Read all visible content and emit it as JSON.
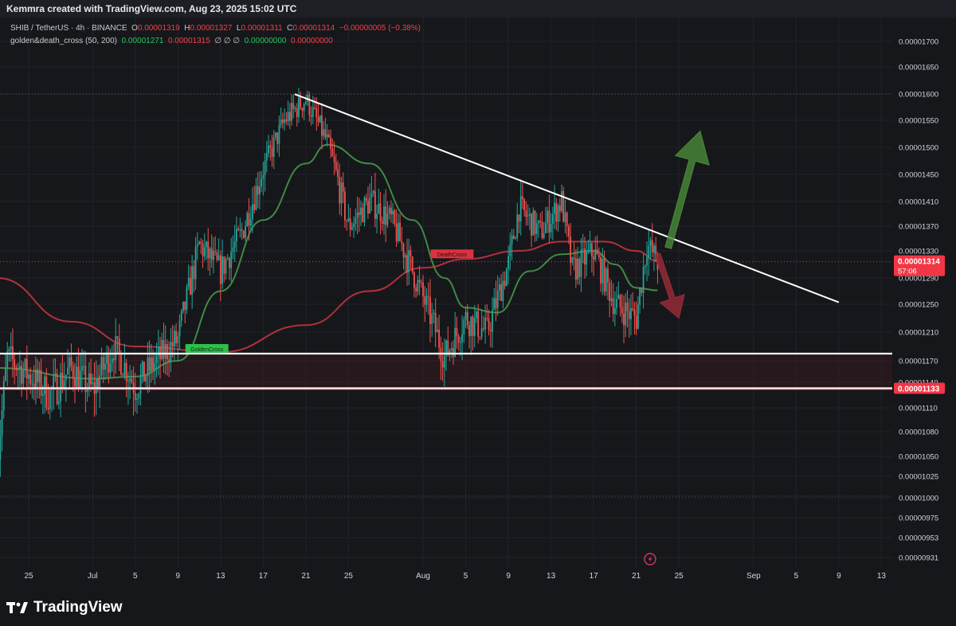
{
  "header": {
    "title": "Kemmra created with TradingView.com, Aug 23, 2025 15:02 UTC"
  },
  "legend": {
    "symbol": "SHIB / TetherUS · 4h · BINANCE",
    "ohlc": [
      {
        "label": "O",
        "value": "0.00001319"
      },
      {
        "label": "H",
        "value": "0.00001327"
      },
      {
        "label": "L",
        "value": "0.00001311"
      },
      {
        "label": "C",
        "value": "0.00001314"
      }
    ],
    "change": "−0.00000005 (−0.38%)",
    "indicator": "golden&death_cross (50, 200)",
    "indicator_values": [
      "0.00001271",
      "0.00001315",
      "∅ ∅ ∅",
      "0.00000000",
      "0.00000000"
    ]
  },
  "price_tag": {
    "value": "0.00001314",
    "countdown": "57:06",
    "color": "#f23645"
  },
  "support_tag": {
    "value": "0.00001133",
    "color": "#f23645"
  },
  "annotations": {
    "golden_cross": "GoldenCross",
    "death_cross": "DeathCross"
  },
  "brand": {
    "name": "TradingView"
  },
  "colors": {
    "background": "#16171b",
    "up": "#26a69a",
    "down": "#ef5350",
    "ma50": "#3f8a44",
    "ma200": "#b3303c"
  },
  "chart_data": {
    "type": "candlestick",
    "timeframe": "4h",
    "x_ticks": [
      "25",
      "Jul",
      "5",
      "9",
      "13",
      "17",
      "21",
      "25",
      "Aug",
      "5",
      "9",
      "13",
      "17",
      "21",
      "25",
      "Sep",
      "5",
      "9",
      "13"
    ],
    "y_ticks": [
      "0.00001700",
      "0.00001650",
      "0.00001600",
      "0.00001550",
      "0.00001500",
      "0.00001450",
      "0.00001410",
      "0.00001370",
      "0.00001330",
      "0.00001290",
      "0.00001250",
      "0.00001210",
      "0.00001170",
      "0.00001140",
      "0.00001110",
      "0.00001080",
      "0.00001050",
      "0.00001025",
      "0.00001000",
      "0.00000975",
      "0.00000953",
      "0.00000931"
    ],
    "ylim": [
      9.3e-06,
      1.72e-05
    ],
    "price_path": [
      [
        "Jun 22",
        1.035e-05
      ],
      [
        "Jun 23",
        1.175e-05
      ],
      [
        "Jun 25",
        1.15e-05
      ],
      [
        "Jun 27",
        1.125e-05
      ],
      [
        "Jun 29",
        1.16e-05
      ],
      [
        "Jul 1",
        1.13e-05
      ],
      [
        "Jul 3",
        1.19e-05
      ],
      [
        "Jul 5",
        1.135e-05
      ],
      [
        "Jul 7",
        1.17e-05
      ],
      [
        "Jul 9",
        1.2e-05
      ],
      [
        "Jul 11",
        1.34e-05
      ],
      [
        "Jul 13",
        1.3e-05
      ],
      [
        "Jul 15",
        1.36e-05
      ],
      [
        "Jul 17",
        1.46e-05
      ],
      [
        "Jul 19",
        1.55e-05
      ],
      [
        "Jul 21",
        1.59e-05
      ],
      [
        "Jul 23",
        1.51e-05
      ],
      [
        "Jul 25",
        1.37e-05
      ],
      [
        "Jul 27",
        1.41e-05
      ],
      [
        "Jul 29",
        1.38e-05
      ],
      [
        "Jul 31",
        1.3e-05
      ],
      [
        "Aug 2",
        1.22e-05
      ],
      [
        "Aug 3",
        1.175e-05
      ],
      [
        "Aug 5",
        1.23e-05
      ],
      [
        "Aug 7",
        1.21e-05
      ],
      [
        "Aug 9",
        1.31e-05
      ],
      [
        "Aug 10",
        1.4e-05
      ],
      [
        "Aug 12",
        1.36e-05
      ],
      [
        "Aug 14",
        1.41e-05
      ],
      [
        "Aug 15",
        1.3e-05
      ],
      [
        "Aug 17",
        1.33e-05
      ],
      [
        "Aug 19",
        1.25e-05
      ],
      [
        "Aug 21",
        1.23e-05
      ],
      [
        "Aug 22",
        1.34e-05
      ],
      [
        "Aug 23",
        1.314e-05
      ]
    ],
    "ma_series": [
      {
        "name": "50",
        "points": [
          [
            "Jun 22",
            1.16e-05
          ],
          [
            "Jul 1",
            1.145e-05
          ],
          [
            "Jul 5",
            1.148e-05
          ],
          [
            "Jul 9",
            1.17e-05
          ],
          [
            "Jul 13",
            1.27e-05
          ],
          [
            "Jul 17",
            1.38e-05
          ],
          [
            "Jul 21",
            1.47e-05
          ],
          [
            "Jul 23",
            1.505e-05
          ],
          [
            "Jul 27",
            1.47e-05
          ],
          [
            "Jul 31",
            1.38e-05
          ],
          [
            "Aug 3",
            1.29e-05
          ],
          [
            "Aug 5",
            1.245e-05
          ],
          [
            "Aug 8",
            1.238e-05
          ],
          [
            "Aug 11",
            1.3e-05
          ],
          [
            "Aug 14",
            1.325e-05
          ],
          [
            "Aug 17",
            1.33e-05
          ],
          [
            "Aug 19",
            1.31e-05
          ],
          [
            "Aug 21",
            1.275e-05
          ],
          [
            "Aug 23",
            1.271e-05
          ]
        ]
      },
      {
        "name": "200",
        "points": [
          [
            "Jun 22",
            1.29e-05
          ],
          [
            "Jun 29",
            1.225e-05
          ],
          [
            "Jul 5",
            1.19e-05
          ],
          [
            "Jul 13",
            1.182e-05
          ],
          [
            "Jul 21",
            1.22e-05
          ],
          [
            "Jul 27",
            1.27e-05
          ],
          [
            "Aug 1",
            1.305e-05
          ],
          [
            "Aug 5",
            1.318e-05
          ],
          [
            "Aug 10",
            1.33e-05
          ],
          [
            "Aug 14",
            1.345e-05
          ],
          [
            "Aug 18",
            1.345e-05
          ],
          [
            "Aug 21",
            1.33e-05
          ],
          [
            "Aug 23",
            1.315e-05
          ]
        ]
      }
    ],
    "trendline": [
      [
        "Jul 21",
        1.61e-05
      ],
      [
        "Sep 9",
        1.253e-05
      ]
    ],
    "support_levels": [
      1.18e-05,
      1.133e-05
    ],
    "current_price": 1.314e-05,
    "cross_events": [
      {
        "label": "GoldenCross",
        "date": "Jul 10",
        "price": 1.18e-05
      },
      {
        "label": "DeathCross",
        "date": "Aug 2",
        "price": 1.318e-05
      }
    ],
    "scenario_arrows": [
      {
        "direction": "up",
        "from": [
          "Aug 24",
          1.335e-05
        ],
        "to": [
          "Aug 27",
          1.53e-05
        ],
        "color": "#4a8a3a"
      },
      {
        "direction": "down",
        "from": [
          "Aug 23",
          1.325e-05
        ],
        "to": [
          "Aug 25",
          1.23e-05
        ],
        "color": "#9b2c38"
      }
    ]
  }
}
